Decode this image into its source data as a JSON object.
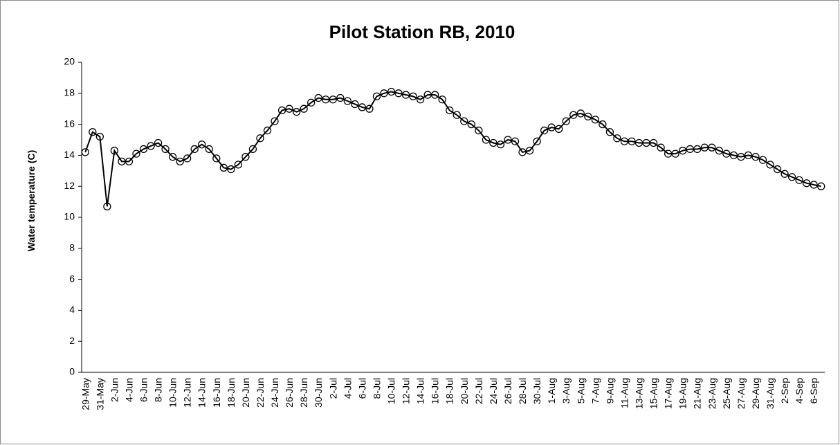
{
  "chart_data": {
    "type": "line",
    "title": "Pilot Station RB, 2010",
    "ylabel": "Water temperature (C)",
    "categories": [
      "29-May",
      null,
      "31-May",
      null,
      "2-Jun",
      null,
      "4-Jun",
      null,
      "6-Jun",
      null,
      "8-Jun",
      null,
      "10-Jun",
      null,
      "12-Jun",
      null,
      "14-Jun",
      null,
      "16-Jun",
      null,
      "18-Jun",
      null,
      "20-Jun",
      null,
      "22-Jun",
      null,
      "24-Jun",
      null,
      "26-Jun",
      null,
      "28-Jun",
      null,
      "30-Jun",
      null,
      "2-Jul",
      null,
      "4-Jul",
      null,
      "6-Jul",
      null,
      "8-Jul",
      null,
      "10-Jul",
      null,
      "12-Jul",
      null,
      "14-Jul",
      null,
      "16-Jul",
      null,
      "18-Jul",
      null,
      "20-Jul",
      null,
      "22-Jul",
      null,
      "24-Jul",
      null,
      "26-Jul",
      null,
      "28-Jul",
      null,
      "30-Jul",
      null,
      "1-Aug",
      null,
      "3-Aug",
      null,
      "5-Aug",
      null,
      "7-Aug",
      null,
      "9-Aug",
      null,
      "11-Aug",
      null,
      "13-Aug",
      null,
      "15-Aug",
      null,
      "17-Aug",
      null,
      "19-Aug",
      null,
      "21-Aug",
      null,
      "23-Aug",
      null,
      "25-Aug",
      null,
      "27-Aug",
      null,
      "29-Aug",
      null,
      "31-Aug",
      null,
      "2-Sep",
      null,
      "4-Sep",
      null,
      "6-Sep",
      null
    ],
    "values": [
      14.2,
      15.5,
      15.2,
      10.7,
      14.3,
      13.6,
      13.6,
      14.1,
      14.4,
      14.6,
      14.8,
      14.4,
      13.9,
      13.6,
      13.8,
      14.4,
      14.7,
      14.4,
      13.8,
      13.2,
      13.1,
      13.4,
      13.9,
      14.4,
      15.1,
      15.6,
      16.2,
      16.9,
      17.0,
      16.8,
      17.0,
      17.4,
      17.7,
      17.6,
      17.6,
      17.7,
      17.5,
      17.3,
      17.1,
      17.0,
      17.8,
      18.0,
      18.1,
      18.0,
      17.9,
      17.8,
      17.6,
      17.9,
      17.9,
      17.6,
      16.9,
      16.6,
      16.2,
      16.0,
      15.6,
      15.0,
      14.8,
      14.7,
      15.0,
      14.9,
      14.2,
      14.3,
      14.9,
      15.6,
      15.8,
      15.7,
      16.2,
      16.6,
      16.7,
      16.5,
      16.3,
      16.0,
      15.5,
      15.1,
      14.9,
      14.9,
      14.8,
      14.8,
      14.8,
      14.5,
      14.1,
      14.1,
      14.3,
      14.4,
      14.4,
      14.5,
      14.5,
      14.3,
      14.1,
      14.0,
      13.9,
      14.0,
      13.9,
      13.7,
      13.4,
      13.1,
      12.8,
      12.6,
      12.4,
      12.2,
      12.1,
      12.0
    ],
    "color": "#000000",
    "ylim": [
      0,
      20
    ],
    "yticks": [
      0,
      2,
      4,
      6,
      8,
      10,
      12,
      14,
      16,
      18,
      20
    ],
    "grid": false
  }
}
